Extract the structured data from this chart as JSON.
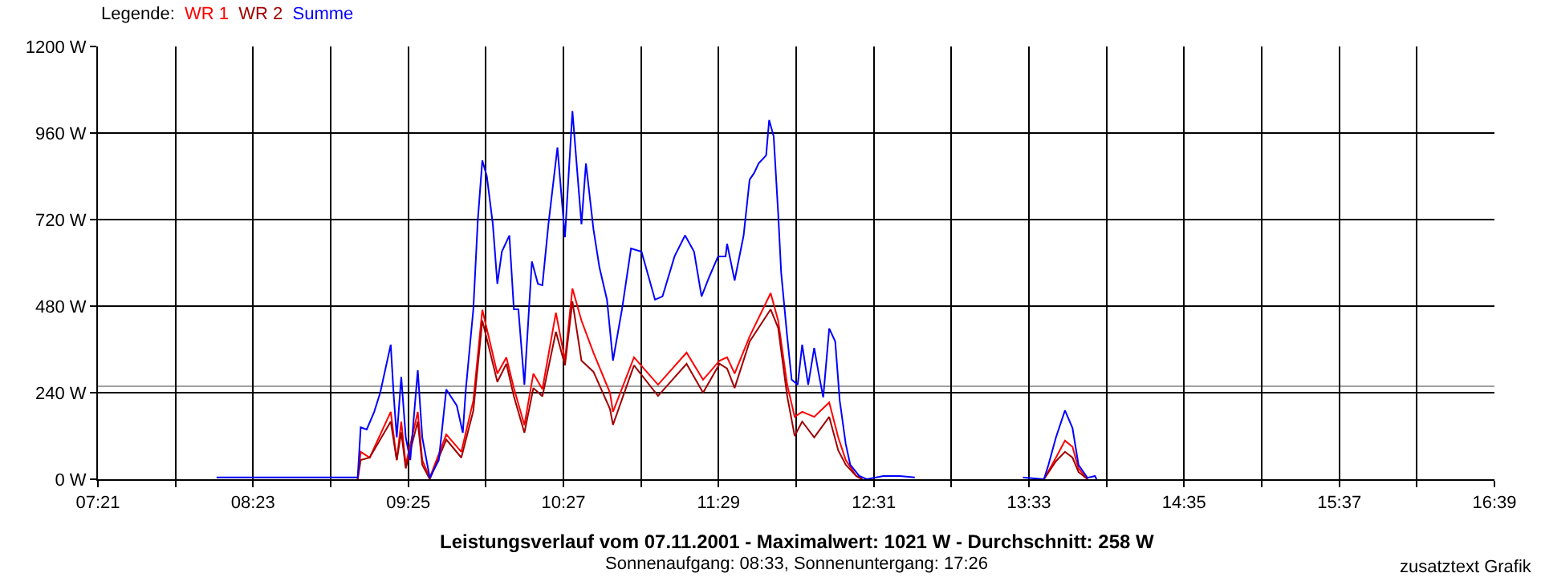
{
  "chart_data": {
    "type": "line",
    "title": "Leistungsverlauf vom 07.11.2001 - Maximalwert: 1021 W - Durchschnitt: 258 W",
    "subtitle": "Sonnenaufgang: 08:33, Sonnenuntergang: 17:26",
    "legend_title": "Legende:",
    "annotations": [
      "zusatztext Grafik"
    ],
    "legend": "top left",
    "grid": true,
    "xlim": [
      7.35,
      16.65
    ],
    "xticks": [
      {
        "value": 7.35,
        "label": "07:21"
      },
      {
        "value": 7.8667,
        "label": null
      },
      {
        "value": 8.3833,
        "label": "08:23"
      },
      {
        "value": 8.9,
        "label": null
      },
      {
        "value": 9.4167,
        "label": "09:25"
      },
      {
        "value": 9.9333,
        "label": null
      },
      {
        "value": 10.45,
        "label": "10:27"
      },
      {
        "value": 10.9667,
        "label": null
      },
      {
        "value": 11.4833,
        "label": "11:29"
      },
      {
        "value": 12.0,
        "label": null
      },
      {
        "value": 12.5167,
        "label": "12:31"
      },
      {
        "value": 13.0333,
        "label": null
      },
      {
        "value": 13.55,
        "label": "13:33"
      },
      {
        "value": 14.0667,
        "label": null
      },
      {
        "value": 14.5833,
        "label": "14:35"
      },
      {
        "value": 15.1,
        "label": null
      },
      {
        "value": 15.6167,
        "label": "15:37"
      },
      {
        "value": 16.1333,
        "label": null
      },
      {
        "value": 16.65,
        "label": "16:39"
      }
    ],
    "ylim": [
      0,
      1200
    ],
    "yticks": [
      {
        "value": 0,
        "label": "0 W"
      },
      {
        "value": 240,
        "label": "240 W"
      },
      {
        "value": 480,
        "label": "480 W"
      },
      {
        "value": 720,
        "label": "720 W"
      },
      {
        "value": 960,
        "label": "960 W"
      },
      {
        "value": 1200,
        "label": "1200 W"
      }
    ],
    "ref_lines": [
      {
        "axis": "y",
        "value": 258,
        "color": "#a0a0a0"
      }
    ],
    "series": [
      {
        "name": "WR 1",
        "color": "#ff0000",
        "x": [
          9.08,
          9.1,
          9.16,
          9.3,
          9.34,
          9.37,
          9.4,
          9.48,
          9.51,
          9.56,
          9.67,
          9.77,
          9.85,
          9.91,
          10.01,
          10.07,
          10.12,
          10.19,
          10.25,
          10.31,
          10.4,
          10.46,
          10.51,
          10.57,
          10.65,
          10.76,
          10.78,
          10.92,
          11.08,
          11.27,
          11.38,
          11.49,
          11.54,
          11.59,
          11.69,
          11.83,
          11.88,
          11.94,
          11.99,
          12.04,
          12.12,
          12.22,
          12.28,
          12.33,
          12.4,
          12.44,
          13.0,
          13.65,
          13.73,
          13.79,
          13.84,
          13.88,
          13.94
        ],
        "values": [
          0,
          76,
          60,
          187,
          53,
          160,
          40,
          187,
          53,
          4,
          124,
          76,
          218,
          470,
          293,
          338,
          253,
          150,
          293,
          250,
          462,
          330,
          529,
          440,
          351,
          240,
          187,
          338,
          262,
          351,
          276,
          329,
          338,
          293,
          396,
          516,
          440,
          262,
          173,
          187,
          173,
          213,
          116,
          53,
          9,
          0,
          null,
          0,
          60,
          107,
          90,
          30,
          0
        ]
      },
      {
        "name": "WR 2",
        "color": "#a00000",
        "x": [
          9.08,
          9.1,
          9.16,
          9.3,
          9.34,
          9.37,
          9.4,
          9.48,
          9.51,
          9.56,
          9.67,
          9.77,
          9.85,
          9.91,
          10.01,
          10.07,
          10.12,
          10.19,
          10.25,
          10.31,
          10.4,
          10.46,
          10.51,
          10.57,
          10.65,
          10.76,
          10.78,
          10.92,
          11.08,
          11.27,
          11.38,
          11.49,
          11.54,
          11.59,
          11.69,
          11.83,
          11.88,
          11.94,
          11.99,
          12.04,
          12.12,
          12.22,
          12.28,
          12.33,
          12.4,
          12.44,
          13.0,
          13.65,
          13.73,
          13.79,
          13.84,
          13.88,
          13.94
        ],
        "values": [
          0,
          53,
          60,
          160,
          53,
          130,
          30,
          160,
          40,
          0,
          110,
          60,
          190,
          440,
          270,
          320,
          230,
          129,
          253,
          230,
          409,
          316,
          493,
          329,
          298,
          195,
          151,
          316,
          231,
          320,
          240,
          320,
          307,
          253,
          382,
          471,
          420,
          231,
          120,
          160,
          116,
          173,
          80,
          40,
          9,
          0,
          null,
          0,
          50,
          76,
          60,
          20,
          0
        ]
      },
      {
        "name": "Summe",
        "color": "#0000ff",
        "x": [
          8.14,
          8.3,
          8.5,
          8.7,
          8.91,
          9.08,
          9.1,
          9.14,
          9.19,
          9.23,
          9.3,
          9.32,
          9.34,
          9.37,
          9.4,
          9.43,
          9.48,
          9.51,
          9.56,
          9.62,
          9.67,
          9.74,
          9.78,
          9.8,
          9.85,
          9.88,
          9.91,
          9.94,
          9.98,
          10.01,
          10.04,
          10.09,
          10.12,
          10.15,
          10.19,
          10.24,
          10.28,
          10.31,
          10.35,
          10.41,
          10.46,
          10.51,
          10.57,
          10.6,
          10.65,
          10.69,
          10.74,
          10.78,
          10.84,
          10.9,
          10.97,
          11.06,
          11.11,
          11.19,
          11.26,
          11.32,
          11.37,
          11.42,
          11.48,
          11.53,
          11.54,
          11.59,
          11.65,
          11.69,
          11.72,
          11.75,
          11.8,
          11.82,
          11.85,
          11.88,
          11.9,
          11.94,
          11.97,
          12.01,
          12.04,
          12.08,
          12.12,
          12.15,
          12.18,
          12.22,
          12.26,
          12.29,
          12.33,
          12.36,
          12.42,
          12.47,
          12.58,
          12.69,
          12.79,
          13.0,
          13.51,
          13.65,
          13.68,
          13.73,
          13.79,
          13.84,
          13.88,
          13.94,
          13.99,
          14.0
        ],
        "values": [
          5,
          5,
          5,
          5,
          5,
          5,
          144,
          138,
          187,
          240,
          373,
          231,
          116,
          284,
          116,
          53,
          302,
          116,
          4,
          53,
          249,
          204,
          129,
          249,
          471,
          720,
          884,
          840,
          707,
          542,
          631,
          676,
          471,
          471,
          262,
          604,
          542,
          538,
          707,
          920,
          671,
          1021,
          707,
          876,
          693,
          587,
          498,
          329,
          471,
          640,
          631,
          498,
          507,
          618,
          676,
          631,
          507,
          560,
          618,
          618,
          653,
          551,
          676,
          831,
          849,
          876,
          898,
          996,
          951,
          738,
          573,
          396,
          276,
          262,
          373,
          262,
          364,
          293,
          227,
          418,
          382,
          218,
          98,
          40,
          9,
          0,
          9,
          9,
          5,
          null,
          5,
          0,
          40,
          116,
          191,
          142,
          40,
          4,
          9,
          0
        ]
      }
    ]
  }
}
